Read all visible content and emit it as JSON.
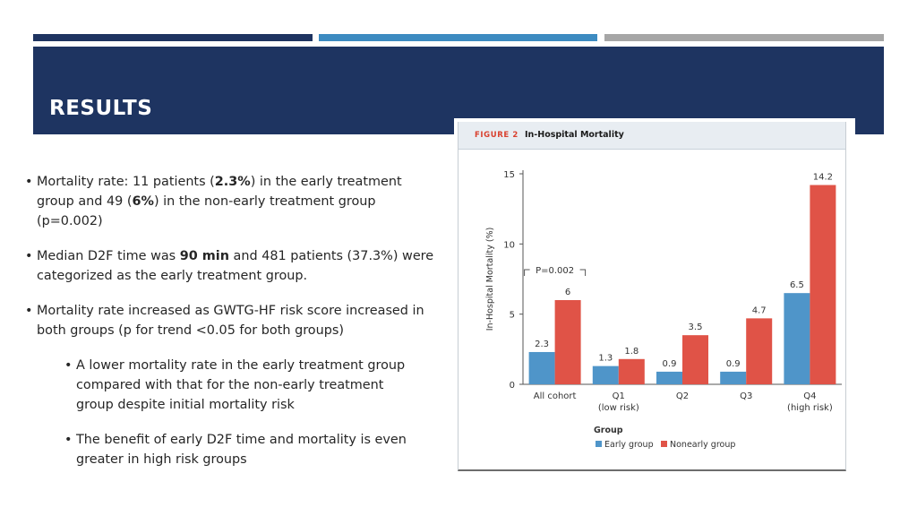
{
  "slide": {
    "title": "RESULTS"
  },
  "bullets": [
    {
      "parts": [
        {
          "text": "Mortality rate: 11 patients ("
        },
        {
          "text": "2.3%",
          "bold": true
        },
        {
          "text": ") in the early treatment group and 49 ("
        },
        {
          "text": "6%",
          "bold": true
        },
        {
          "text": ") in the non-early treatment group (p=0.002)"
        }
      ]
    },
    {
      "parts": [
        {
          "text": "Median D2F time was "
        },
        {
          "text": "90 min",
          "bold": true
        },
        {
          "text": " and 481 patients (37.3%) were categorized as the early treatment group."
        }
      ]
    },
    {
      "parts": [
        {
          "text": "Mortality rate increased as GWTG-HF risk score increased in both groups (p for trend <0.05 for both groups)"
        }
      ]
    },
    {
      "sub": true,
      "parts": [
        {
          "text": "A lower mortality rate in the early treatment group compared with that for the non-early treatment group despite initial mortality risk"
        }
      ]
    },
    {
      "sub": true,
      "parts": [
        {
          "text": "The benefit of early D2F time and mortality is even greater in high risk groups"
        }
      ]
    }
  ],
  "figure": {
    "label": "FIGURE 2",
    "name": "In-Hospital Mortality"
  },
  "colors": {
    "header": "#1e3461",
    "early": "#4f95c9",
    "nonearly": "#e05347"
  },
  "chart_data": {
    "type": "bar",
    "categories": [
      {
        "lines": [
          "All cohort"
        ]
      },
      {
        "lines": [
          "Q1",
          "(low risk)"
        ]
      },
      {
        "lines": [
          "Q2"
        ]
      },
      {
        "lines": [
          "Q3"
        ]
      },
      {
        "lines": [
          "Q4",
          "(high risk)"
        ]
      }
    ],
    "series": [
      {
        "name": "Early group",
        "values": [
          2.3,
          1.3,
          0.9,
          0.9,
          6.5
        ],
        "labels": [
          "2.3",
          "1.3",
          "0.9",
          "0.9",
          "6.5"
        ]
      },
      {
        "name": "Nonearly group",
        "values": [
          6,
          1.8,
          3.5,
          4.7,
          14.2
        ],
        "labels": [
          "6",
          "1.8",
          "3.5",
          "4.7",
          "14.2"
        ]
      }
    ],
    "ylabel": "In-Hospital Mortality (%)",
    "ylim": [
      0,
      15
    ],
    "yticks": [
      "0",
      "5",
      "10",
      "15"
    ],
    "annotation": "P=0.002",
    "legend_title": "Group",
    "legend_position": "bottom-center",
    "grid": false
  }
}
